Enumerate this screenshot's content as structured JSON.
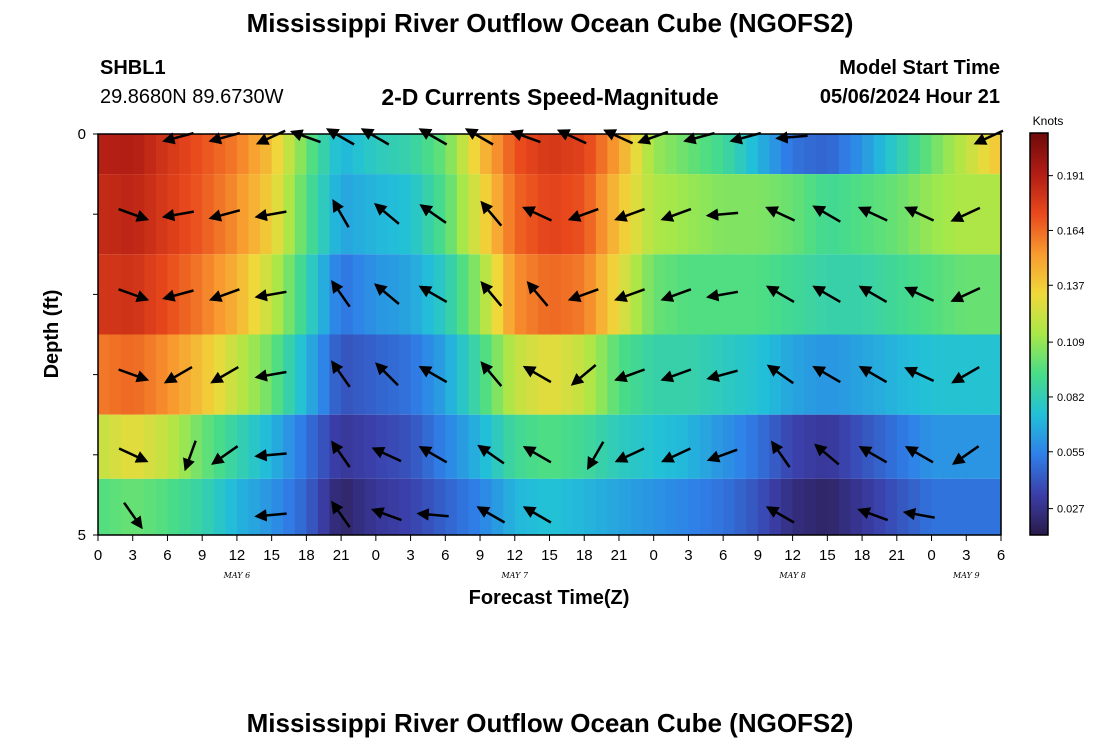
{
  "header": {
    "title": "Mississippi River Outflow Ocean Cube (NGOFS2)",
    "station_id": "SHBL1",
    "coords": "29.8680N  89.6730W",
    "subtitle": "2-D Currents Speed-Magnitude",
    "model_start_label": "Model Start Time",
    "model_start_value": "05/06/2024 Hour 21"
  },
  "footer": {
    "title": "Mississippi River Outflow Ocean Cube (NGOFS2)"
  },
  "colors": {
    "palette": [
      "#2a1a4a",
      "#3b3ea8",
      "#2f7fe8",
      "#22c0d8",
      "#48dc88",
      "#a8e848",
      "#f0d83a",
      "#f89a30",
      "#e8481c",
      "#b01c14",
      "#6e0a0a"
    ],
    "arrow": "#000000"
  },
  "chart_data": {
    "type": "heatmap",
    "xlabel": "Forecast Time(Z)",
    "ylabel": "Depth (ft)",
    "x_tick_labels": [
      "0",
      "3",
      "6",
      "9",
      "12",
      "15",
      "18",
      "21",
      "0",
      "3",
      "6",
      "9",
      "12",
      "15",
      "18",
      "21",
      "0",
      "3",
      "6",
      "9",
      "12",
      "15",
      "18",
      "21",
      "0",
      "3",
      "6"
    ],
    "x_range_hours": [
      0,
      78
    ],
    "day_labels": [
      {
        "label": "MAY 6",
        "hour": 12
      },
      {
        "label": "MAY 7",
        "hour": 36
      },
      {
        "label": "MAY 8",
        "hour": 60
      },
      {
        "label": "MAY 9",
        "hour": 75
      }
    ],
    "y_tick_labels": [
      "0",
      "5"
    ],
    "ylim": [
      0,
      5
    ],
    "colorbar": {
      "label": "Knots",
      "ticks": [
        0.191,
        0.164,
        0.137,
        0.109,
        0.082,
        0.055,
        0.027
      ],
      "range": [
        0.014,
        0.212
      ]
    },
    "speed_layers": [
      {
        "depth": 0,
        "times": [
          0,
          3,
          6,
          9,
          12,
          15,
          18,
          21,
          24,
          27,
          30,
          33,
          36,
          39,
          42,
          45,
          48,
          51,
          54,
          57,
          60,
          63,
          66,
          69,
          72,
          75,
          78
        ],
        "values": [
          0.19,
          0.192,
          0.18,
          0.17,
          0.16,
          0.14,
          0.1,
          0.07,
          0.08,
          0.085,
          0.1,
          0.14,
          0.17,
          0.18,
          0.175,
          0.15,
          0.11,
          0.1,
          0.09,
          0.07,
          0.05,
          0.045,
          0.06,
          0.08,
          0.1,
          0.12,
          0.14
        ]
      },
      {
        "depth": 1,
        "times": [
          0,
          3,
          6,
          9,
          12,
          15,
          18,
          21,
          24,
          27,
          30,
          33,
          36,
          39,
          42,
          45,
          48,
          51,
          54,
          57,
          60,
          63,
          66,
          69,
          72,
          75,
          78
        ],
        "values": [
          0.185,
          0.188,
          0.178,
          0.168,
          0.155,
          0.135,
          0.095,
          0.065,
          0.07,
          0.075,
          0.095,
          0.13,
          0.165,
          0.175,
          0.17,
          0.14,
          0.115,
          0.11,
          0.105,
          0.105,
          0.1,
          0.09,
          0.095,
          0.1,
          0.11,
          0.115,
          0.115
        ]
      },
      {
        "depth": 2,
        "times": [
          0,
          3,
          6,
          9,
          12,
          15,
          18,
          21,
          24,
          27,
          30,
          33,
          36,
          39,
          42,
          45,
          48,
          51,
          54,
          57,
          60,
          63,
          66,
          69,
          72,
          75,
          78
        ],
        "values": [
          0.18,
          0.182,
          0.172,
          0.16,
          0.145,
          0.12,
          0.085,
          0.05,
          0.06,
          0.065,
          0.08,
          0.11,
          0.155,
          0.165,
          0.16,
          0.13,
          0.1,
          0.095,
          0.095,
          0.095,
          0.09,
          0.085,
          0.085,
          0.09,
          0.095,
          0.1,
          0.1
        ]
      },
      {
        "depth": 3,
        "times": [
          0,
          3,
          6,
          9,
          12,
          15,
          18,
          21,
          24,
          27,
          30,
          33,
          36,
          39,
          42,
          45,
          48,
          51,
          54,
          57,
          60,
          63,
          66,
          69,
          72,
          75,
          78
        ],
        "values": [
          0.16,
          0.165,
          0.155,
          0.14,
          0.12,
          0.1,
          0.07,
          0.04,
          0.045,
          0.05,
          0.065,
          0.09,
          0.12,
          0.13,
          0.12,
          0.095,
          0.085,
          0.085,
          0.08,
          0.075,
          0.065,
          0.06,
          0.065,
          0.07,
          0.075,
          0.075,
          0.075
        ]
      },
      {
        "depth": 4,
        "times": [
          0,
          3,
          6,
          9,
          12,
          15,
          18,
          21,
          24,
          27,
          30,
          33,
          36,
          39,
          42,
          45,
          48,
          51,
          54,
          57,
          60,
          63,
          66,
          69,
          72,
          75,
          78
        ],
        "values": [
          0.12,
          0.13,
          0.12,
          0.1,
          0.085,
          0.07,
          0.05,
          0.03,
          0.035,
          0.04,
          0.055,
          0.07,
          0.09,
          0.095,
          0.09,
          0.08,
          0.075,
          0.07,
          0.06,
          0.05,
          0.035,
          0.03,
          0.04,
          0.05,
          0.06,
          0.06,
          0.06
        ]
      },
      {
        "depth": 4.6,
        "times": [
          0,
          3,
          6,
          9,
          12,
          15,
          18,
          21,
          24,
          27,
          30,
          33,
          36,
          39,
          42,
          45,
          48,
          51,
          54,
          57,
          60,
          63,
          66,
          69,
          72,
          75,
          78
        ],
        "values": [
          0.095,
          0.1,
          0.095,
          0.085,
          0.07,
          0.06,
          0.045,
          0.02,
          0.03,
          0.035,
          0.045,
          0.055,
          0.07,
          0.075,
          0.07,
          0.065,
          0.06,
          0.055,
          0.05,
          0.04,
          0.025,
          0.02,
          0.03,
          0.04,
          0.05,
          0.05,
          0.05
        ]
      }
    ],
    "vector_layers": [
      {
        "depth": 0,
        "vectors": [
          {
            "hour": 7,
            "dir": 255
          },
          {
            "hour": 11,
            "dir": 255
          },
          {
            "hour": 15,
            "dir": 245
          },
          {
            "hour": 18,
            "dir": 290
          },
          {
            "hour": 21,
            "dir": 300
          },
          {
            "hour": 24,
            "dir": 300
          },
          {
            "hour": 29,
            "dir": 300
          },
          {
            "hour": 33,
            "dir": 300
          },
          {
            "hour": 37,
            "dir": 290
          },
          {
            "hour": 41,
            "dir": 295
          },
          {
            "hour": 45,
            "dir": 295
          },
          {
            "hour": 48,
            "dir": 250
          },
          {
            "hour": 52,
            "dir": 255
          },
          {
            "hour": 56,
            "dir": 255
          },
          {
            "hour": 60,
            "dir": 265
          },
          {
            "hour": 77,
            "dir": 245
          }
        ]
      },
      {
        "depth": 1,
        "vectors": [
          {
            "hour": 3,
            "dir": 110
          },
          {
            "hour": 7,
            "dir": 260
          },
          {
            "hour": 11,
            "dir": 255
          },
          {
            "hour": 15,
            "dir": 260
          },
          {
            "hour": 21,
            "dir": 330
          },
          {
            "hour": 25,
            "dir": 310
          },
          {
            "hour": 29,
            "dir": 305
          },
          {
            "hour": 34,
            "dir": 320
          },
          {
            "hour": 38,
            "dir": 295
          },
          {
            "hour": 42,
            "dir": 250
          },
          {
            "hour": 46,
            "dir": 250
          },
          {
            "hour": 50,
            "dir": 250
          },
          {
            "hour": 54,
            "dir": 265
          },
          {
            "hour": 59,
            "dir": 295
          },
          {
            "hour": 63,
            "dir": 300
          },
          {
            "hour": 67,
            "dir": 295
          },
          {
            "hour": 71,
            "dir": 295
          },
          {
            "hour": 75,
            "dir": 245
          }
        ]
      },
      {
        "depth": 2,
        "vectors": [
          {
            "hour": 3,
            "dir": 110
          },
          {
            "hour": 7,
            "dir": 255
          },
          {
            "hour": 11,
            "dir": 250
          },
          {
            "hour": 15,
            "dir": 260
          },
          {
            "hour": 21,
            "dir": 325
          },
          {
            "hour": 25,
            "dir": 310
          },
          {
            "hour": 29,
            "dir": 300
          },
          {
            "hour": 34,
            "dir": 320
          },
          {
            "hour": 38,
            "dir": 320
          },
          {
            "hour": 42,
            "dir": 250
          },
          {
            "hour": 46,
            "dir": 250
          },
          {
            "hour": 50,
            "dir": 250
          },
          {
            "hour": 54,
            "dir": 260
          },
          {
            "hour": 59,
            "dir": 300
          },
          {
            "hour": 63,
            "dir": 300
          },
          {
            "hour": 67,
            "dir": 300
          },
          {
            "hour": 71,
            "dir": 295
          },
          {
            "hour": 75,
            "dir": 245
          }
        ]
      },
      {
        "depth": 3,
        "vectors": [
          {
            "hour": 3,
            "dir": 110
          },
          {
            "hour": 7,
            "dir": 240
          },
          {
            "hour": 11,
            "dir": 240
          },
          {
            "hour": 15,
            "dir": 260
          },
          {
            "hour": 21,
            "dir": 325
          },
          {
            "hour": 25,
            "dir": 315
          },
          {
            "hour": 29,
            "dir": 300
          },
          {
            "hour": 34,
            "dir": 320
          },
          {
            "hour": 38,
            "dir": 300
          },
          {
            "hour": 42,
            "dir": 230
          },
          {
            "hour": 46,
            "dir": 250
          },
          {
            "hour": 50,
            "dir": 250
          },
          {
            "hour": 54,
            "dir": 255
          },
          {
            "hour": 59,
            "dir": 305
          },
          {
            "hour": 63,
            "dir": 300
          },
          {
            "hour": 67,
            "dir": 300
          },
          {
            "hour": 71,
            "dir": 295
          },
          {
            "hour": 75,
            "dir": 240
          }
        ]
      },
      {
        "depth": 4,
        "vectors": [
          {
            "hour": 3,
            "dir": 115
          },
          {
            "hour": 8,
            "dir": 200
          },
          {
            "hour": 11,
            "dir": 235
          },
          {
            "hour": 15,
            "dir": 265
          },
          {
            "hour": 21,
            "dir": 325
          },
          {
            "hour": 25,
            "dir": 295
          },
          {
            "hour": 29,
            "dir": 300
          },
          {
            "hour": 34,
            "dir": 305
          },
          {
            "hour": 38,
            "dir": 300
          },
          {
            "hour": 43,
            "dir": 210
          },
          {
            "hour": 46,
            "dir": 245
          },
          {
            "hour": 50,
            "dir": 245
          },
          {
            "hour": 54,
            "dir": 250
          },
          {
            "hour": 59,
            "dir": 325
          },
          {
            "hour": 63,
            "dir": 310
          },
          {
            "hour": 67,
            "dir": 300
          },
          {
            "hour": 71,
            "dir": 300
          },
          {
            "hour": 75,
            "dir": 235
          }
        ]
      },
      {
        "depth": 4.75,
        "vectors": [
          {
            "hour": 3,
            "dir": 145
          },
          {
            "hour": 15,
            "dir": 265
          },
          {
            "hour": 21,
            "dir": 325
          },
          {
            "hour": 25,
            "dir": 290
          },
          {
            "hour": 29,
            "dir": 275
          },
          {
            "hour": 34,
            "dir": 300
          },
          {
            "hour": 38,
            "dir": 300
          },
          {
            "hour": 59,
            "dir": 300
          },
          {
            "hour": 67,
            "dir": 290
          },
          {
            "hour": 71,
            "dir": 280
          }
        ]
      }
    ]
  }
}
